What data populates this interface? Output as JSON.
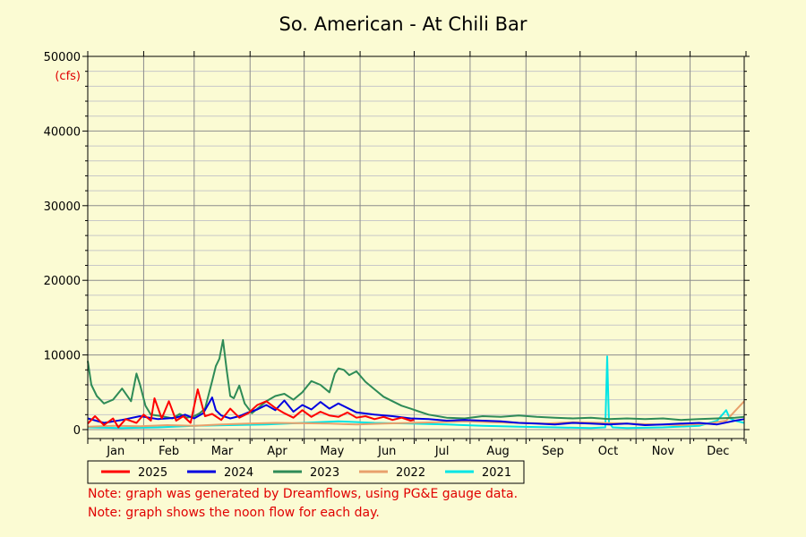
{
  "chart_data": {
    "type": "line",
    "title": "So. American - At Chili Bar",
    "ylabel": "(cfs)",
    "ylim": [
      0,
      50000
    ],
    "yticks": [
      0,
      10000,
      20000,
      30000,
      40000,
      50000
    ],
    "categories": [
      "Jan",
      "Feb",
      "Mar",
      "Apr",
      "May",
      "Jun",
      "Jul",
      "Aug",
      "Sep",
      "Oct",
      "Nov",
      "Dec"
    ],
    "grid": true,
    "legend_position": "bottom",
    "series": [
      {
        "name": "2025",
        "color": "#ff0000",
        "x": [
          1,
          5,
          10,
          15,
          18,
          22,
          28,
          32,
          36,
          38,
          42,
          46,
          50,
          54,
          58,
          62,
          66,
          70,
          75,
          80,
          85,
          90,
          95,
          100,
          105,
          110,
          115,
          120,
          125,
          130,
          135,
          140,
          145,
          150,
          155,
          160,
          165,
          170,
          175,
          180,
          182
        ],
        "y": [
          800,
          1800,
          600,
          1500,
          300,
          1400,
          900,
          2000,
          1200,
          4200,
          1500,
          3800,
          1200,
          1800,
          900,
          5400,
          1800,
          2100,
          1300,
          2800,
          1600,
          2200,
          3300,
          3800,
          2900,
          2200,
          1600,
          2600,
          1700,
          2400,
          1900,
          1700,
          2300,
          1600,
          1800,
          1400,
          1700,
          1300,
          1600,
          1200,
          1300
        ]
      },
      {
        "name": "2024",
        "color": "#0000e0",
        "x": [
          1,
          10,
          20,
          30,
          40,
          50,
          55,
          60,
          65,
          70,
          72,
          75,
          80,
          85,
          90,
          95,
          100,
          105,
          110,
          115,
          120,
          125,
          130,
          135,
          140,
          150,
          160,
          170,
          180,
          190,
          200,
          210,
          220,
          230,
          240,
          250,
          260,
          270,
          280,
          290,
          300,
          310,
          320,
          330,
          340,
          350,
          360,
          365
        ],
        "y": [
          1500,
          900,
          1300,
          1800,
          1400,
          1600,
          2000,
          1500,
          2200,
          4300,
          2600,
          1900,
          1500,
          1800,
          2300,
          2700,
          3300,
          2600,
          3900,
          2400,
          3300,
          2700,
          3700,
          2800,
          3500,
          2300,
          2000,
          1800,
          1500,
          1400,
          1200,
          1300,
          1200,
          1100,
          900,
          800,
          700,
          900,
          800,
          700,
          800,
          600,
          700,
          800,
          900,
          700,
          1200,
          1400
        ]
      },
      {
        "name": "2023",
        "color": "#2e8b57",
        "x": [
          1,
          3,
          6,
          10,
          15,
          20,
          25,
          28,
          30,
          33,
          36,
          42,
          48,
          52,
          56,
          60,
          63,
          66,
          70,
          72,
          74,
          76,
          78,
          80,
          82,
          85,
          88,
          92,
          96,
          100,
          105,
          110,
          115,
          120,
          125,
          130,
          135,
          138,
          140,
          143,
          146,
          150,
          155,
          160,
          165,
          170,
          175,
          180,
          185,
          190,
          195,
          200,
          210,
          220,
          230,
          240,
          250,
          260,
          270,
          280,
          290,
          300,
          310,
          320,
          330,
          340,
          350,
          360,
          365
        ],
        "y": [
          9200,
          6000,
          4500,
          3500,
          4000,
          5500,
          3800,
          7500,
          6000,
          3200,
          2000,
          1800,
          1500,
          2100,
          1600,
          1800,
          2200,
          2800,
          6500,
          8500,
          9500,
          12000,
          8000,
          4500,
          4200,
          5900,
          3500,
          2200,
          3000,
          3800,
          4500,
          4800,
          4000,
          5000,
          6500,
          6000,
          5000,
          7500,
          8200,
          8000,
          7300,
          7800,
          6400,
          5400,
          4400,
          3800,
          3200,
          2800,
          2400,
          2000,
          1800,
          1600,
          1500,
          1800,
          1700,
          1900,
          1700,
          1600,
          1500,
          1600,
          1400,
          1500,
          1400,
          1500,
          1300,
          1400,
          1500,
          1600,
          1700
        ]
      },
      {
        "name": "2022",
        "color": "#e8a06c",
        "x": [
          1,
          15,
          30,
          45,
          60,
          75,
          90,
          105,
          120,
          135,
          150,
          165,
          180,
          195,
          210,
          225,
          240,
          255,
          270,
          285,
          300,
          315,
          330,
          345,
          355,
          360,
          365
        ],
        "y": [
          400,
          500,
          450,
          600,
          500,
          700,
          800,
          900,
          850,
          800,
          700,
          800,
          900,
          1000,
          1100,
          1000,
          900,
          800,
          1000,
          900,
          800,
          700,
          600,
          800,
          1200,
          2500,
          3800
        ]
      },
      {
        "name": "2021",
        "color": "#00e5e5",
        "x": [
          1,
          20,
          40,
          60,
          80,
          100,
          120,
          140,
          160,
          180,
          200,
          220,
          240,
          260,
          280,
          288,
          289,
          290,
          292,
          300,
          320,
          340,
          350,
          355,
          357,
          360,
          365
        ],
        "y": [
          300,
          200,
          300,
          500,
          600,
          700,
          900,
          1100,
          900,
          800,
          700,
          500,
          400,
          300,
          200,
          300,
          9800,
          1000,
          300,
          200,
          300,
          500,
          1200,
          2600,
          1500,
          1200,
          900
        ]
      }
    ]
  },
  "notes": [
    "Note: graph was generated by Dreamflows, using PG&E gauge data.",
    "Note: graph shows the noon flow for each day."
  ]
}
